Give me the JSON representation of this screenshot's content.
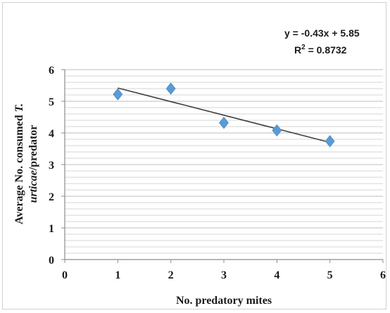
{
  "chart_data": {
    "type": "scatter",
    "title": "",
    "xlabel": "No. predatory mites",
    "ylabel_parts": [
      "Average No. consumed ",
      "T.",
      " ",
      "urticae",
      "/predator"
    ],
    "xlim": [
      0,
      6
    ],
    "ylim": [
      0,
      6
    ],
    "x_ticks": [
      "0",
      "1",
      "2",
      "3",
      "4",
      "5",
      "6"
    ],
    "y_ticks": [
      "0",
      "1",
      "2",
      "3",
      "4",
      "5",
      "6"
    ],
    "grid": "horizontal-minor",
    "series": [
      {
        "x": [
          1,
          2,
          3,
          4,
          5
        ],
        "y": [
          5.22,
          5.4,
          4.32,
          4.08,
          3.74
        ],
        "marker": "diamond",
        "color": "#5b9bd5"
      }
    ],
    "trendline": {
      "slope": -0.43,
      "intercept": 5.85,
      "x_range": [
        1,
        5
      ],
      "color": "#404040",
      "equation": "y = -0.43x + 5.85",
      "r2_prefix": "R",
      "r2_sup": "2",
      "r2_value": " = 0.8732"
    }
  }
}
